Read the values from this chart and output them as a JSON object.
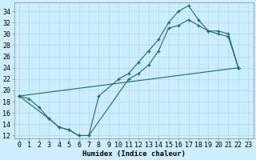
{
  "xlabel": "Humidex (Indice chaleur)",
  "bg_color": "#cceeff",
  "grid_color": "#aadddd",
  "line_color": "#1a6b6b",
  "xlim": [
    -0.5,
    23.5
  ],
  "ylim": [
    11.5,
    35.5
  ],
  "xticks": [
    0,
    1,
    2,
    3,
    4,
    5,
    6,
    7,
    8,
    9,
    10,
    11,
    12,
    13,
    14,
    15,
    16,
    17,
    18,
    19,
    20,
    21,
    22,
    23
  ],
  "yticks": [
    12,
    14,
    16,
    18,
    20,
    22,
    24,
    26,
    28,
    30,
    32,
    34
  ],
  "line1_x": [
    0,
    1,
    2,
    3,
    4,
    5,
    6,
    7,
    8,
    10,
    11,
    12,
    13,
    14,
    15,
    16,
    17,
    18,
    19,
    20,
    21,
    22
  ],
  "line1_y": [
    19,
    18.5,
    17,
    15,
    13.5,
    13,
    12,
    12,
    19,
    22,
    23,
    25,
    27,
    29,
    32,
    34,
    35,
    32.5,
    30.5,
    30,
    29.5,
    24
  ],
  "line2_x": [
    0,
    3,
    4,
    5,
    6,
    7,
    11,
    12,
    13,
    14,
    15,
    16,
    17,
    18,
    19,
    20,
    21,
    22
  ],
  "line2_y": [
    19,
    15,
    13.5,
    13,
    12,
    12,
    22,
    23,
    24.5,
    27,
    31,
    31.5,
    32.5,
    31.5,
    30.5,
    30.5,
    30,
    24
  ],
  "line3_x": [
    0,
    22
  ],
  "line3_y": [
    19,
    24
  ],
  "font_size": 6.5,
  "tick_font_size": 6
}
